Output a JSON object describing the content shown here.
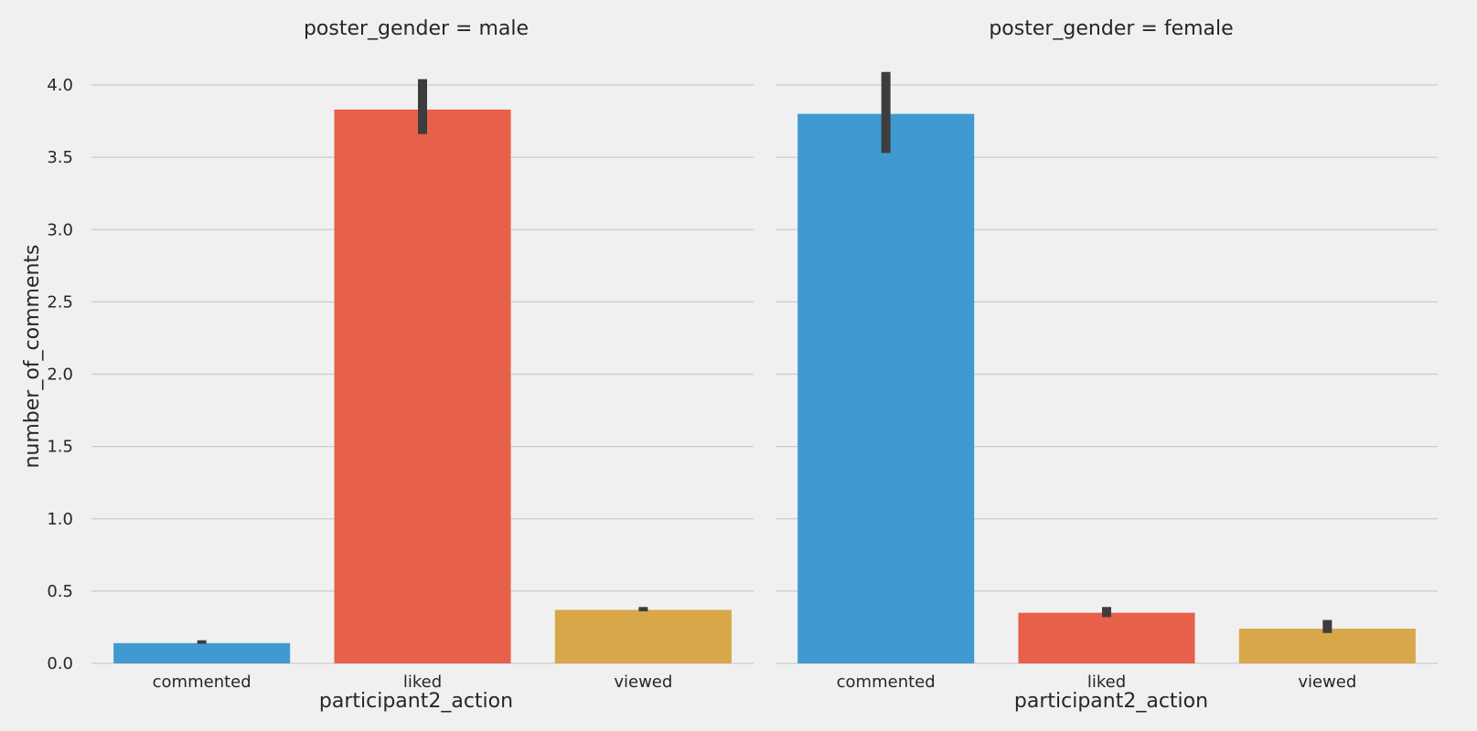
{
  "chart_data": {
    "type": "bar",
    "ylabel": "number_of_comments",
    "ylim": [
      0,
      4.1
    ],
    "yticks": [
      0.0,
      0.5,
      1.0,
      1.5,
      2.0,
      2.5,
      3.0,
      3.5,
      4.0
    ],
    "grid": true,
    "bar_colors": [
      "#3f9ad0",
      "#e7604a",
      "#d7a74a"
    ],
    "error_bar_color": "#3d3d3d",
    "panels": [
      {
        "title": "poster_gender = male",
        "xlabel": "participant2_action",
        "categories": [
          "commented",
          "liked",
          "viewed"
        ],
        "values": [
          0.14,
          3.83,
          0.37
        ],
        "ci": [
          [
            0.135,
            0.16
          ],
          [
            3.66,
            4.04
          ],
          [
            0.36,
            0.39
          ]
        ]
      },
      {
        "title": "poster_gender = female",
        "xlabel": "participant2_action",
        "categories": [
          "commented",
          "liked",
          "viewed"
        ],
        "values": [
          3.8,
          0.35,
          0.24
        ],
        "ci": [
          [
            3.53,
            4.09
          ],
          [
            0.32,
            0.39
          ],
          [
            0.21,
            0.3
          ]
        ]
      }
    ]
  }
}
